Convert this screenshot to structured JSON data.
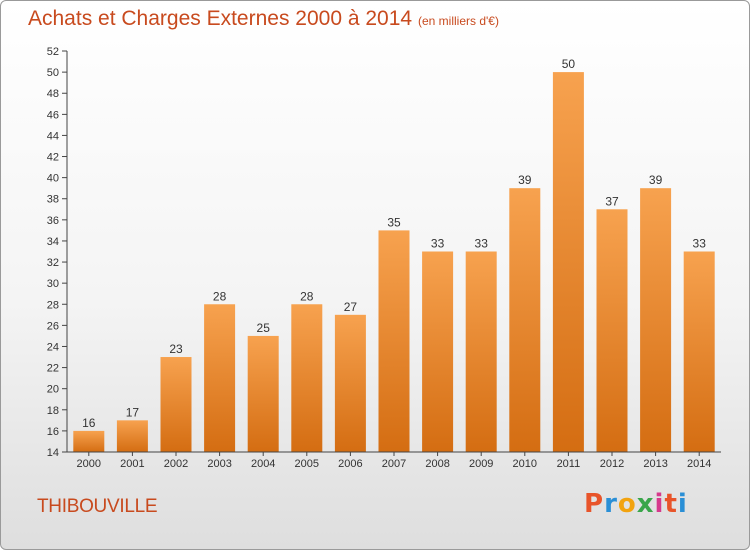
{
  "header": {
    "title": "Achats et Charges Externes 2000 à 2014",
    "unit_note": "(en milliers d'€)"
  },
  "footer": {
    "commune": "THIBOUVILLE",
    "logo_letters": [
      "P",
      "r",
      "o",
      "x",
      "i",
      "t",
      "i"
    ],
    "logo_colors": [
      "#e8542a",
      "#2a8fd6",
      "#f2a30f",
      "#3aa64b",
      "#d63a8c",
      "#e8542a",
      "#2a8fd6"
    ]
  },
  "chart_data": {
    "type": "bar",
    "title": "Achats et Charges Externes 2000 à 2014",
    "subtitle": "(en milliers d'€)",
    "xlabel": "",
    "ylabel": "",
    "categories": [
      "2000",
      "2001",
      "2002",
      "2003",
      "2004",
      "2005",
      "2006",
      "2007",
      "2008",
      "2009",
      "2010",
      "2011",
      "2012",
      "2013",
      "2014"
    ],
    "values": [
      16,
      17,
      23,
      28,
      25,
      28,
      27,
      35,
      33,
      33,
      39,
      50,
      37,
      39,
      33
    ],
    "ylim": [
      14,
      52
    ],
    "yticks": [
      14,
      16,
      18,
      20,
      22,
      24,
      26,
      28,
      30,
      32,
      34,
      36,
      38,
      40,
      42,
      44,
      46,
      48,
      50,
      52
    ],
    "grid": false,
    "legend": "none",
    "colors": {
      "bar_top": "#f7a24f",
      "bar_bottom": "#d46d12",
      "axis": "#444444",
      "label": "#333333",
      "accent": "#c84a1e"
    }
  }
}
